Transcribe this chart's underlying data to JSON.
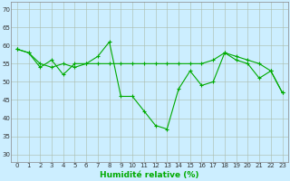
{
  "xlabel": "Humidité relative (%)",
  "background_color": "#cceeff",
  "grid_color": "#aabbaa",
  "line_color": "#00aa00",
  "xlim": [
    -0.5,
    23.5
  ],
  "ylim": [
    28,
    72
  ],
  "yticks": [
    30,
    35,
    40,
    45,
    50,
    55,
    60,
    65,
    70
  ],
  "xticks": [
    0,
    1,
    2,
    3,
    4,
    5,
    6,
    7,
    8,
    9,
    10,
    11,
    12,
    13,
    14,
    15,
    16,
    17,
    18,
    19,
    20,
    21,
    22,
    23
  ],
  "series1_x": [
    0,
    1,
    2,
    3,
    4,
    5,
    6,
    7,
    8,
    9,
    10,
    11,
    12,
    13,
    14,
    15,
    16,
    17,
    18,
    19,
    20,
    21,
    22,
    23
  ],
  "series1_y": [
    59,
    58,
    54,
    56,
    52,
    55,
    55,
    57,
    61,
    46,
    46,
    42,
    38,
    37,
    48,
    53,
    49,
    50,
    58,
    56,
    55,
    51,
    53,
    47
  ],
  "series2_x": [
    0,
    1,
    2,
    3,
    4,
    5,
    6,
    7,
    8,
    9,
    10,
    11,
    12,
    13,
    14,
    15,
    16,
    17,
    18,
    19,
    20,
    21,
    22,
    23
  ],
  "series2_y": [
    59,
    58,
    55,
    54,
    55,
    54,
    55,
    55,
    55,
    55,
    55,
    55,
    55,
    55,
    55,
    55,
    55,
    56,
    58,
    57,
    56,
    55,
    53,
    47
  ],
  "xlabel_fontsize": 6.5,
  "xlabel_color": "#00aa00",
  "tick_fontsize": 5,
  "figwidth": 3.2,
  "figheight": 2.0,
  "dpi": 100
}
